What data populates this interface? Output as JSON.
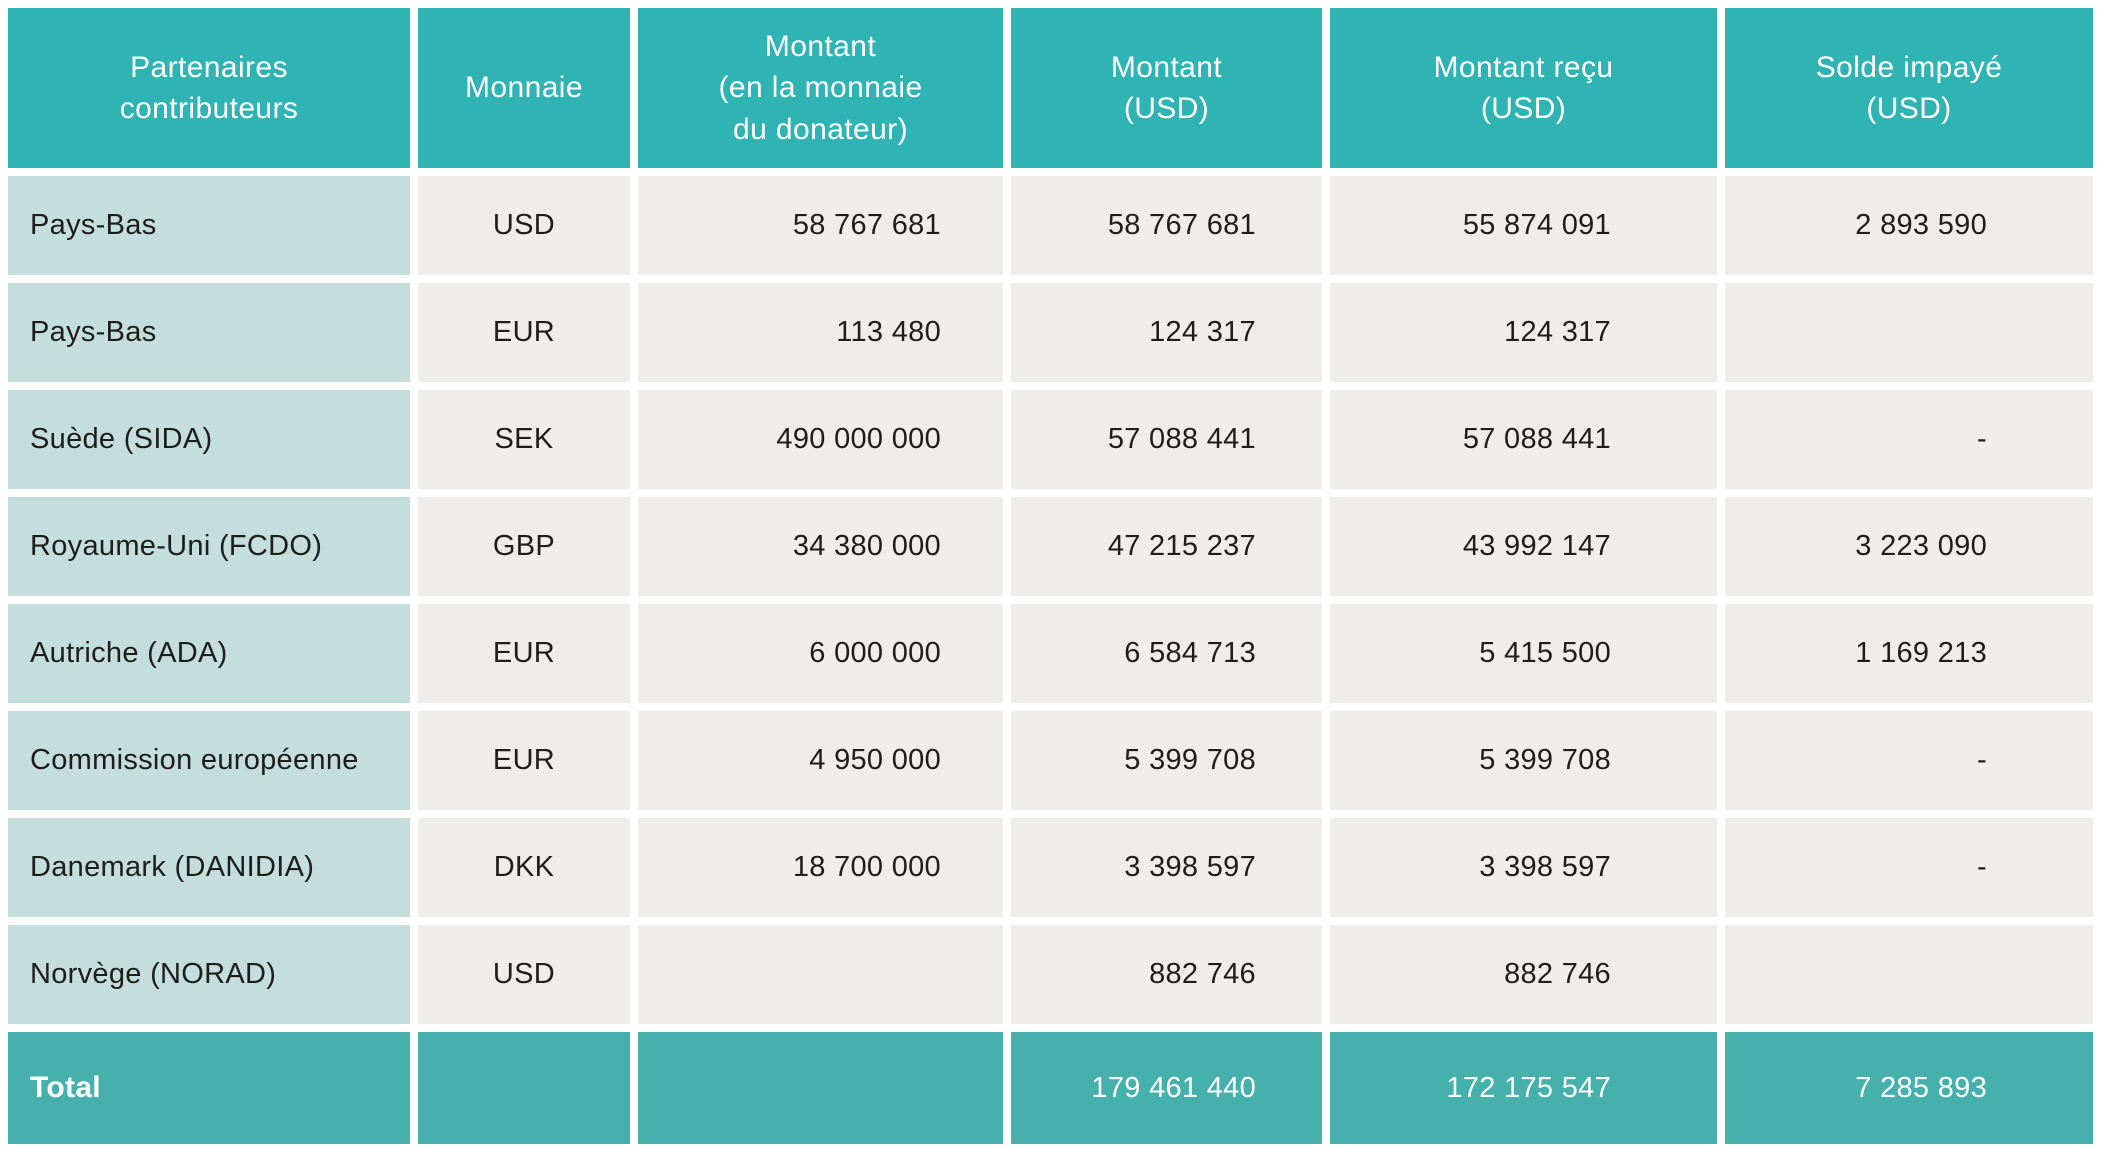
{
  "colors": {
    "header_background": "#2fb3b3",
    "total_row_background": "#46b0ad",
    "partner_column_background": "#c4dede",
    "data_cell_background": "#eeedeb",
    "header_text": "#ffffff",
    "body_text": "#1d1d1b"
  },
  "table": {
    "columns": [
      {
        "key": "partner",
        "label": "Partenaires\ncontributeurs"
      },
      {
        "key": "currency",
        "label": "Monnaie"
      },
      {
        "key": "amount_donor",
        "label": "Montant\n(en la monnaie\ndu donateur)"
      },
      {
        "key": "amount_usd",
        "label": "Montant\n(USD)"
      },
      {
        "key": "amount_received",
        "label": "Montant reçu\n(USD)"
      },
      {
        "key": "balance_unpaid",
        "label": "Solde impayé\n(USD)"
      }
    ],
    "rows": [
      {
        "partner": "Pays-Bas",
        "currency": "USD",
        "amount_donor": "58 767 681",
        "amount_usd": "58 767 681",
        "amount_received": "55 874 091",
        "balance_unpaid": "2 893 590"
      },
      {
        "partner": "Pays-Bas",
        "currency": "EUR",
        "amount_donor": "113 480",
        "amount_usd": "124 317",
        "amount_received": "124 317",
        "balance_unpaid": ""
      },
      {
        "partner": "Suède (SIDA)",
        "currency": "SEK",
        "amount_donor": "490 000 000",
        "amount_usd": "57 088 441",
        "amount_received": "57 088 441",
        "balance_unpaid": "-"
      },
      {
        "partner": "Royaume-Uni (FCDO)",
        "currency": "GBP",
        "amount_donor": "34 380 000",
        "amount_usd": "47 215 237",
        "amount_received": "43 992 147",
        "balance_unpaid": "3 223 090"
      },
      {
        "partner": "Autriche (ADA)",
        "currency": "EUR",
        "amount_donor": "6 000 000",
        "amount_usd": "6 584 713",
        "amount_received": "5 415 500",
        "balance_unpaid": "1 169 213"
      },
      {
        "partner": "Commission européenne",
        "currency": "EUR",
        "amount_donor": "4 950 000",
        "amount_usd": "5 399 708",
        "amount_received": "5 399 708",
        "balance_unpaid": "-"
      },
      {
        "partner": "Danemark (DANIDIA)",
        "currency": "DKK",
        "amount_donor": "18 700 000",
        "amount_usd": "3 398 597",
        "amount_received": "3 398 597",
        "balance_unpaid": "-"
      },
      {
        "partner": "Norvège (NORAD)",
        "currency": "USD",
        "amount_donor": "",
        "amount_usd": "882 746",
        "amount_received": "882 746",
        "balance_unpaid": ""
      }
    ],
    "total": {
      "label": "Total",
      "currency": "",
      "amount_donor": "",
      "amount_usd": "179 461 440",
      "amount_received": "172 175 547",
      "balance_unpaid": "7 285 893"
    }
  }
}
